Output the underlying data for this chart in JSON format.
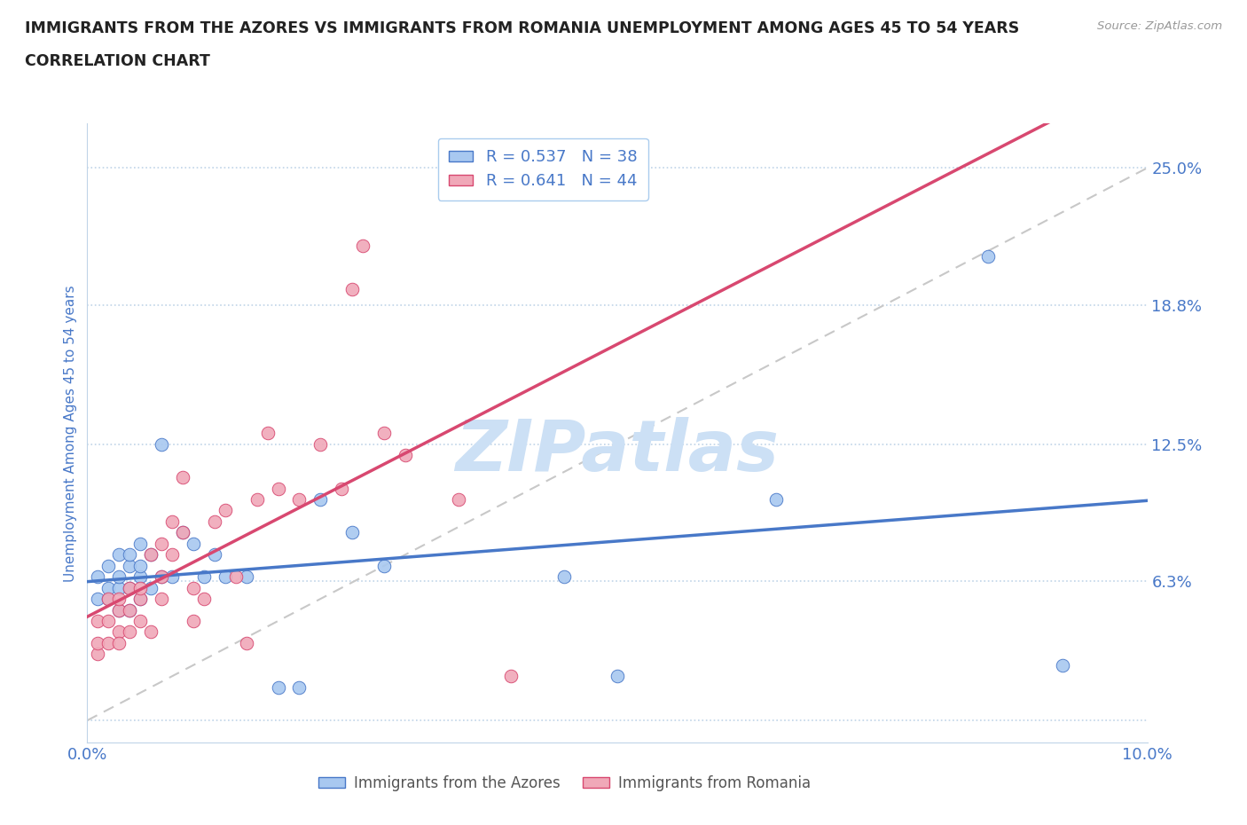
{
  "title_line1": "IMMIGRANTS FROM THE AZORES VS IMMIGRANTS FROM ROMANIA UNEMPLOYMENT AMONG AGES 45 TO 54 YEARS",
  "title_line2": "CORRELATION CHART",
  "source_text": "Source: ZipAtlas.com",
  "ylabel": "Unemployment Among Ages 45 to 54 years",
  "xlim": [
    0.0,
    0.1
  ],
  "ylim": [
    -0.01,
    0.27
  ],
  "yticks": [
    0.0,
    0.063,
    0.125,
    0.188,
    0.25
  ],
  "ytick_labels": [
    "",
    "6.3%",
    "12.5%",
    "18.8%",
    "25.0%"
  ],
  "xticks": [
    0.0,
    0.025,
    0.05,
    0.075,
    0.1
  ],
  "xtick_labels": [
    "0.0%",
    "",
    "",
    "",
    "10.0%"
  ],
  "azores_R": 0.537,
  "azores_N": 38,
  "romania_R": 0.641,
  "romania_N": 44,
  "azores_color": "#a8c8f0",
  "romania_color": "#f0a8b8",
  "azores_line_color": "#4878c8",
  "romania_line_color": "#d84870",
  "diagonal_line_color": "#c8c8c8",
  "background_color": "#ffffff",
  "watermark_text": "ZIPatlas",
  "watermark_color": "#cce0f5",
  "azores_x": [
    0.001,
    0.001,
    0.002,
    0.002,
    0.002,
    0.003,
    0.003,
    0.003,
    0.003,
    0.004,
    0.004,
    0.004,
    0.004,
    0.005,
    0.005,
    0.005,
    0.005,
    0.006,
    0.006,
    0.007,
    0.007,
    0.008,
    0.009,
    0.01,
    0.011,
    0.012,
    0.013,
    0.015,
    0.018,
    0.02,
    0.022,
    0.025,
    0.028,
    0.045,
    0.05,
    0.065,
    0.085,
    0.092
  ],
  "azores_y": [
    0.055,
    0.065,
    0.055,
    0.06,
    0.07,
    0.05,
    0.06,
    0.065,
    0.075,
    0.05,
    0.06,
    0.07,
    0.075,
    0.055,
    0.065,
    0.07,
    0.08,
    0.06,
    0.075,
    0.065,
    0.125,
    0.065,
    0.085,
    0.08,
    0.065,
    0.075,
    0.065,
    0.065,
    0.015,
    0.015,
    0.1,
    0.085,
    0.07,
    0.065,
    0.02,
    0.1,
    0.21,
    0.025
  ],
  "romania_x": [
    0.001,
    0.001,
    0.001,
    0.002,
    0.002,
    0.002,
    0.003,
    0.003,
    0.003,
    0.003,
    0.004,
    0.004,
    0.004,
    0.005,
    0.005,
    0.005,
    0.006,
    0.006,
    0.007,
    0.007,
    0.007,
    0.008,
    0.008,
    0.009,
    0.009,
    0.01,
    0.01,
    0.011,
    0.012,
    0.013,
    0.014,
    0.015,
    0.016,
    0.017,
    0.018,
    0.02,
    0.022,
    0.024,
    0.025,
    0.026,
    0.028,
    0.03,
    0.035,
    0.04
  ],
  "romania_y": [
    0.03,
    0.045,
    0.035,
    0.045,
    0.055,
    0.035,
    0.04,
    0.05,
    0.055,
    0.035,
    0.04,
    0.05,
    0.06,
    0.045,
    0.055,
    0.06,
    0.04,
    0.075,
    0.055,
    0.065,
    0.08,
    0.09,
    0.075,
    0.11,
    0.085,
    0.045,
    0.06,
    0.055,
    0.09,
    0.095,
    0.065,
    0.035,
    0.1,
    0.13,
    0.105,
    0.1,
    0.125,
    0.105,
    0.195,
    0.215,
    0.13,
    0.12,
    0.1,
    0.02
  ]
}
